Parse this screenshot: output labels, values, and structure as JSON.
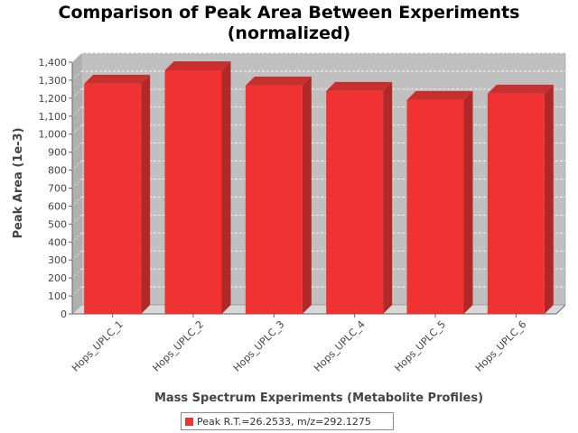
{
  "chart_data": {
    "type": "bar",
    "title_lines": [
      "Comparison of Peak Area Between Experiments",
      "(normalized)"
    ],
    "xlabel": "Mass Spectrum Experiments (Metabolite Profiles)",
    "ylabel": "Peak Area (1e-3)",
    "categories": [
      "Hops_UPLC_1",
      "Hops_UPLC_2",
      "Hops_UPLC_3",
      "Hops_UPLC_4",
      "Hops_UPLC_5",
      "Hops_UPLC_6"
    ],
    "series": [
      {
        "name": "Peak R.T.=26.2533, m/z=292.1275",
        "values": [
          1280,
          1355,
          1270,
          1240,
          1190,
          1225
        ],
        "color": "#f03232"
      }
    ],
    "ylim": [
      0,
      1400
    ],
    "yticks": [
      0,
      100,
      200,
      300,
      400,
      500,
      600,
      700,
      800,
      900,
      1000,
      1100,
      1200,
      1300,
      1400
    ],
    "yticklabels": [
      "0",
      "100",
      "200",
      "300",
      "400",
      "500",
      "600",
      "700",
      "800",
      "900",
      "1,000",
      "1,100",
      "1,200",
      "1,300",
      "1,400"
    ],
    "grid": true,
    "legend_position": "bottom",
    "three_d": true,
    "plot_background": "#c0c0c0"
  }
}
